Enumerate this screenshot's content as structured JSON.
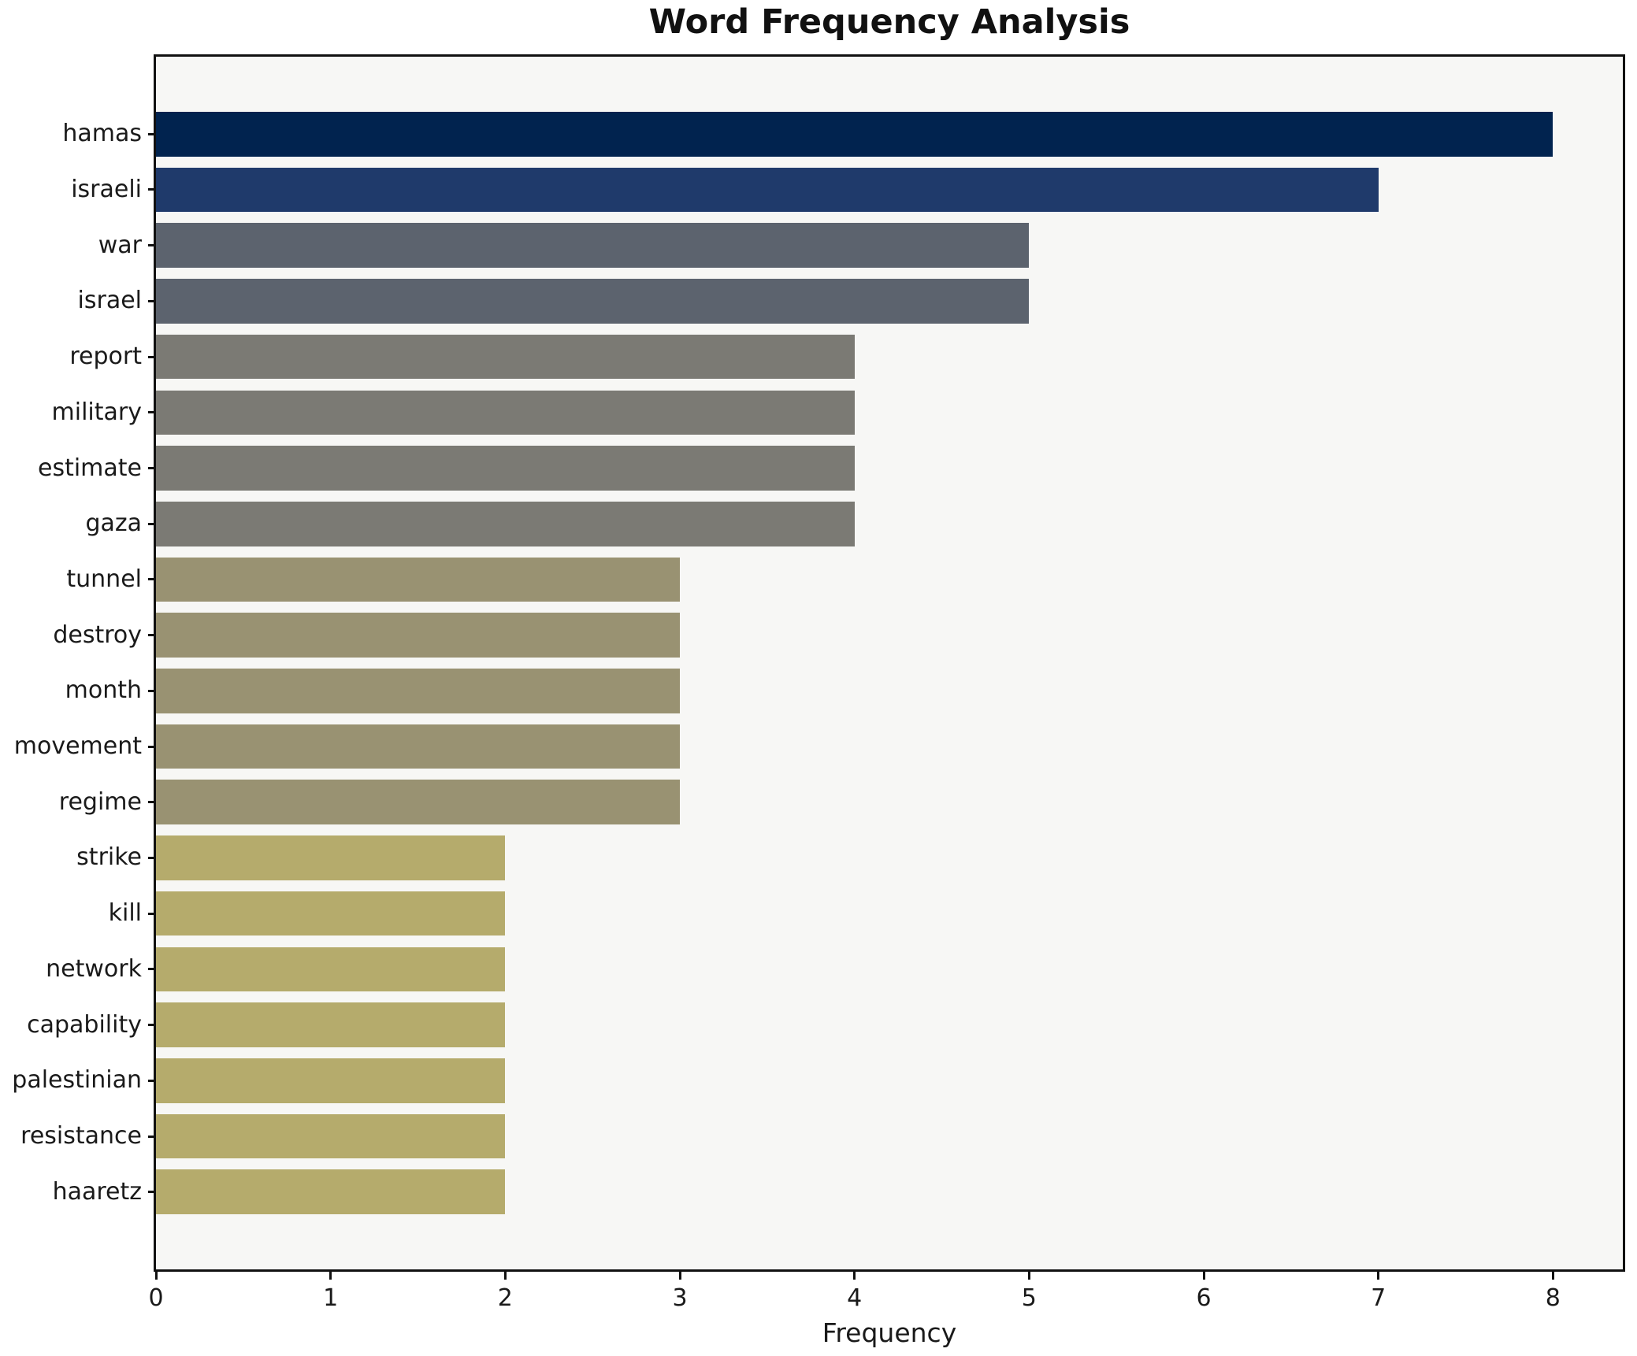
{
  "chart_data": {
    "type": "bar",
    "orientation": "horizontal",
    "title": "Word Frequency Analysis",
    "xlabel": "Frequency",
    "ylabel": "",
    "grid": false,
    "legend": "none",
    "xlim": [
      0,
      8.4
    ],
    "x_ticks": [
      0,
      1,
      2,
      3,
      4,
      5,
      6,
      7,
      8
    ],
    "categories": [
      "hamas",
      "israeli",
      "war",
      "israel",
      "report",
      "military",
      "estimate",
      "gaza",
      "tunnel",
      "destroy",
      "month",
      "movement",
      "regime",
      "strike",
      "kill",
      "network",
      "capability",
      "palestinian",
      "resistance",
      "haaretz"
    ],
    "values": [
      8,
      7,
      5,
      5,
      4,
      4,
      4,
      4,
      3,
      3,
      3,
      3,
      3,
      2,
      2,
      2,
      2,
      2,
      2,
      2
    ],
    "bar_colors": [
      "#01234f",
      "#1f3a6b",
      "#5c636e",
      "#5c636e",
      "#7b7a74",
      "#7b7a74",
      "#7b7a74",
      "#7b7a74",
      "#999272",
      "#999272",
      "#999272",
      "#999272",
      "#999272",
      "#b5ab6c",
      "#b5ab6c",
      "#b5ab6c",
      "#b5ab6c",
      "#b5ab6c",
      "#b5ab6c",
      "#b5ab6c"
    ],
    "plot_bg_color": "#f7f7f5",
    "figure_bg_color": "#ffffff",
    "axis_color": "#111111",
    "text_color": "#1a1a1a"
  }
}
